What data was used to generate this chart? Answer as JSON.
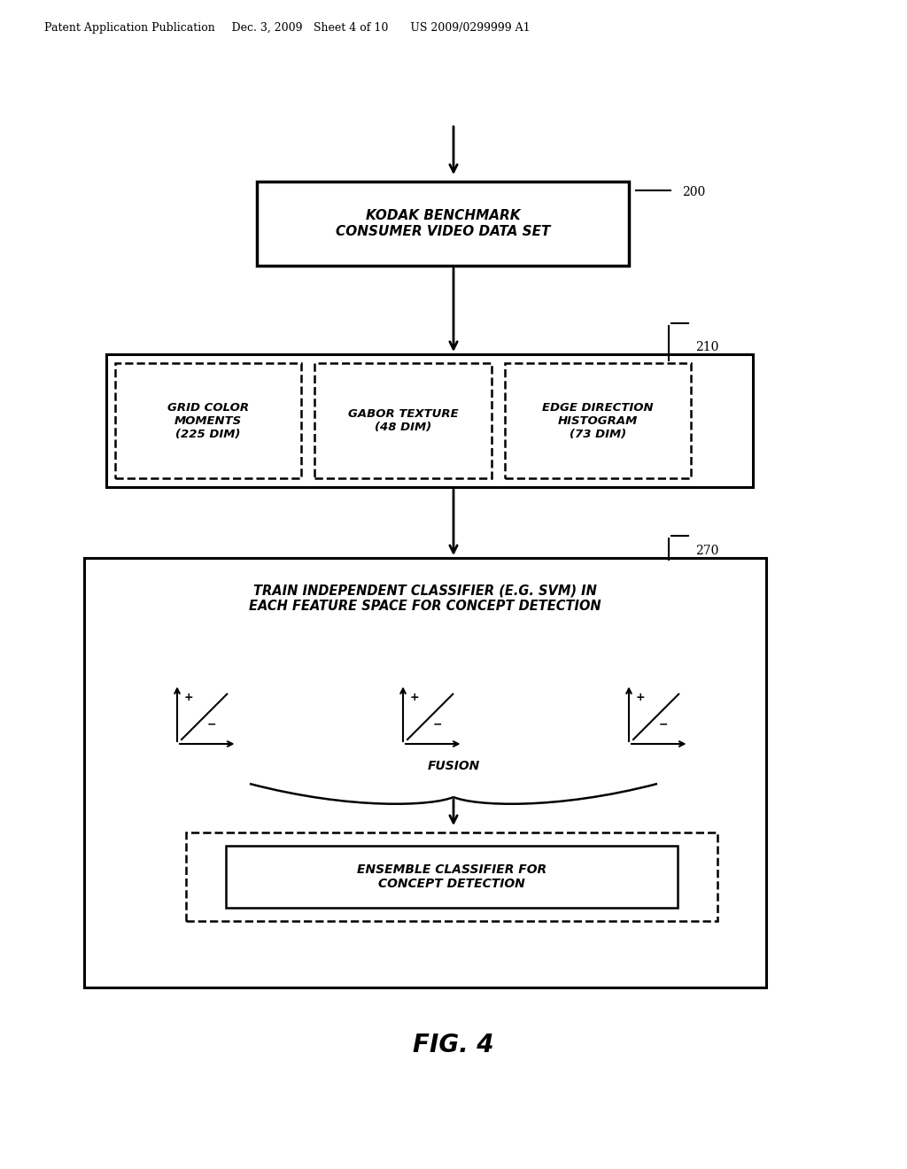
{
  "bg_color": "#ffffff",
  "header_text": "Patent Application Publication   Dec. 3, 2009  Sheet 4 of 10    US 2009/0299999 A1",
  "box200_text": "KODAK BENCHMARK\nCONSUMER VIDEO DATA SET",
  "box200_label": "200",
  "box210_label": "210",
  "box210_sub1": "GRID COLOR\nMOMENTS\n(225 DIM)",
  "box210_sub2": "GABOR TEXTURE\n(48 DIM)",
  "box210_sub3": "EDGE DIRECTION\nHISTOGRAM\n(73 DIM)",
  "box270_label": "270",
  "box270_text1": "TRAIN INDEPENDENT CLASSIFIER (E.G. SVM) IN\nEACH FEATURE SPACE FOR CONCEPT DETECTION",
  "fusion_text": "FUSION",
  "ensemble_text": "ENSEMBLE CLASSIFIER FOR\nCONCEPT DETECTION",
  "fig_label": "FIG. 4"
}
